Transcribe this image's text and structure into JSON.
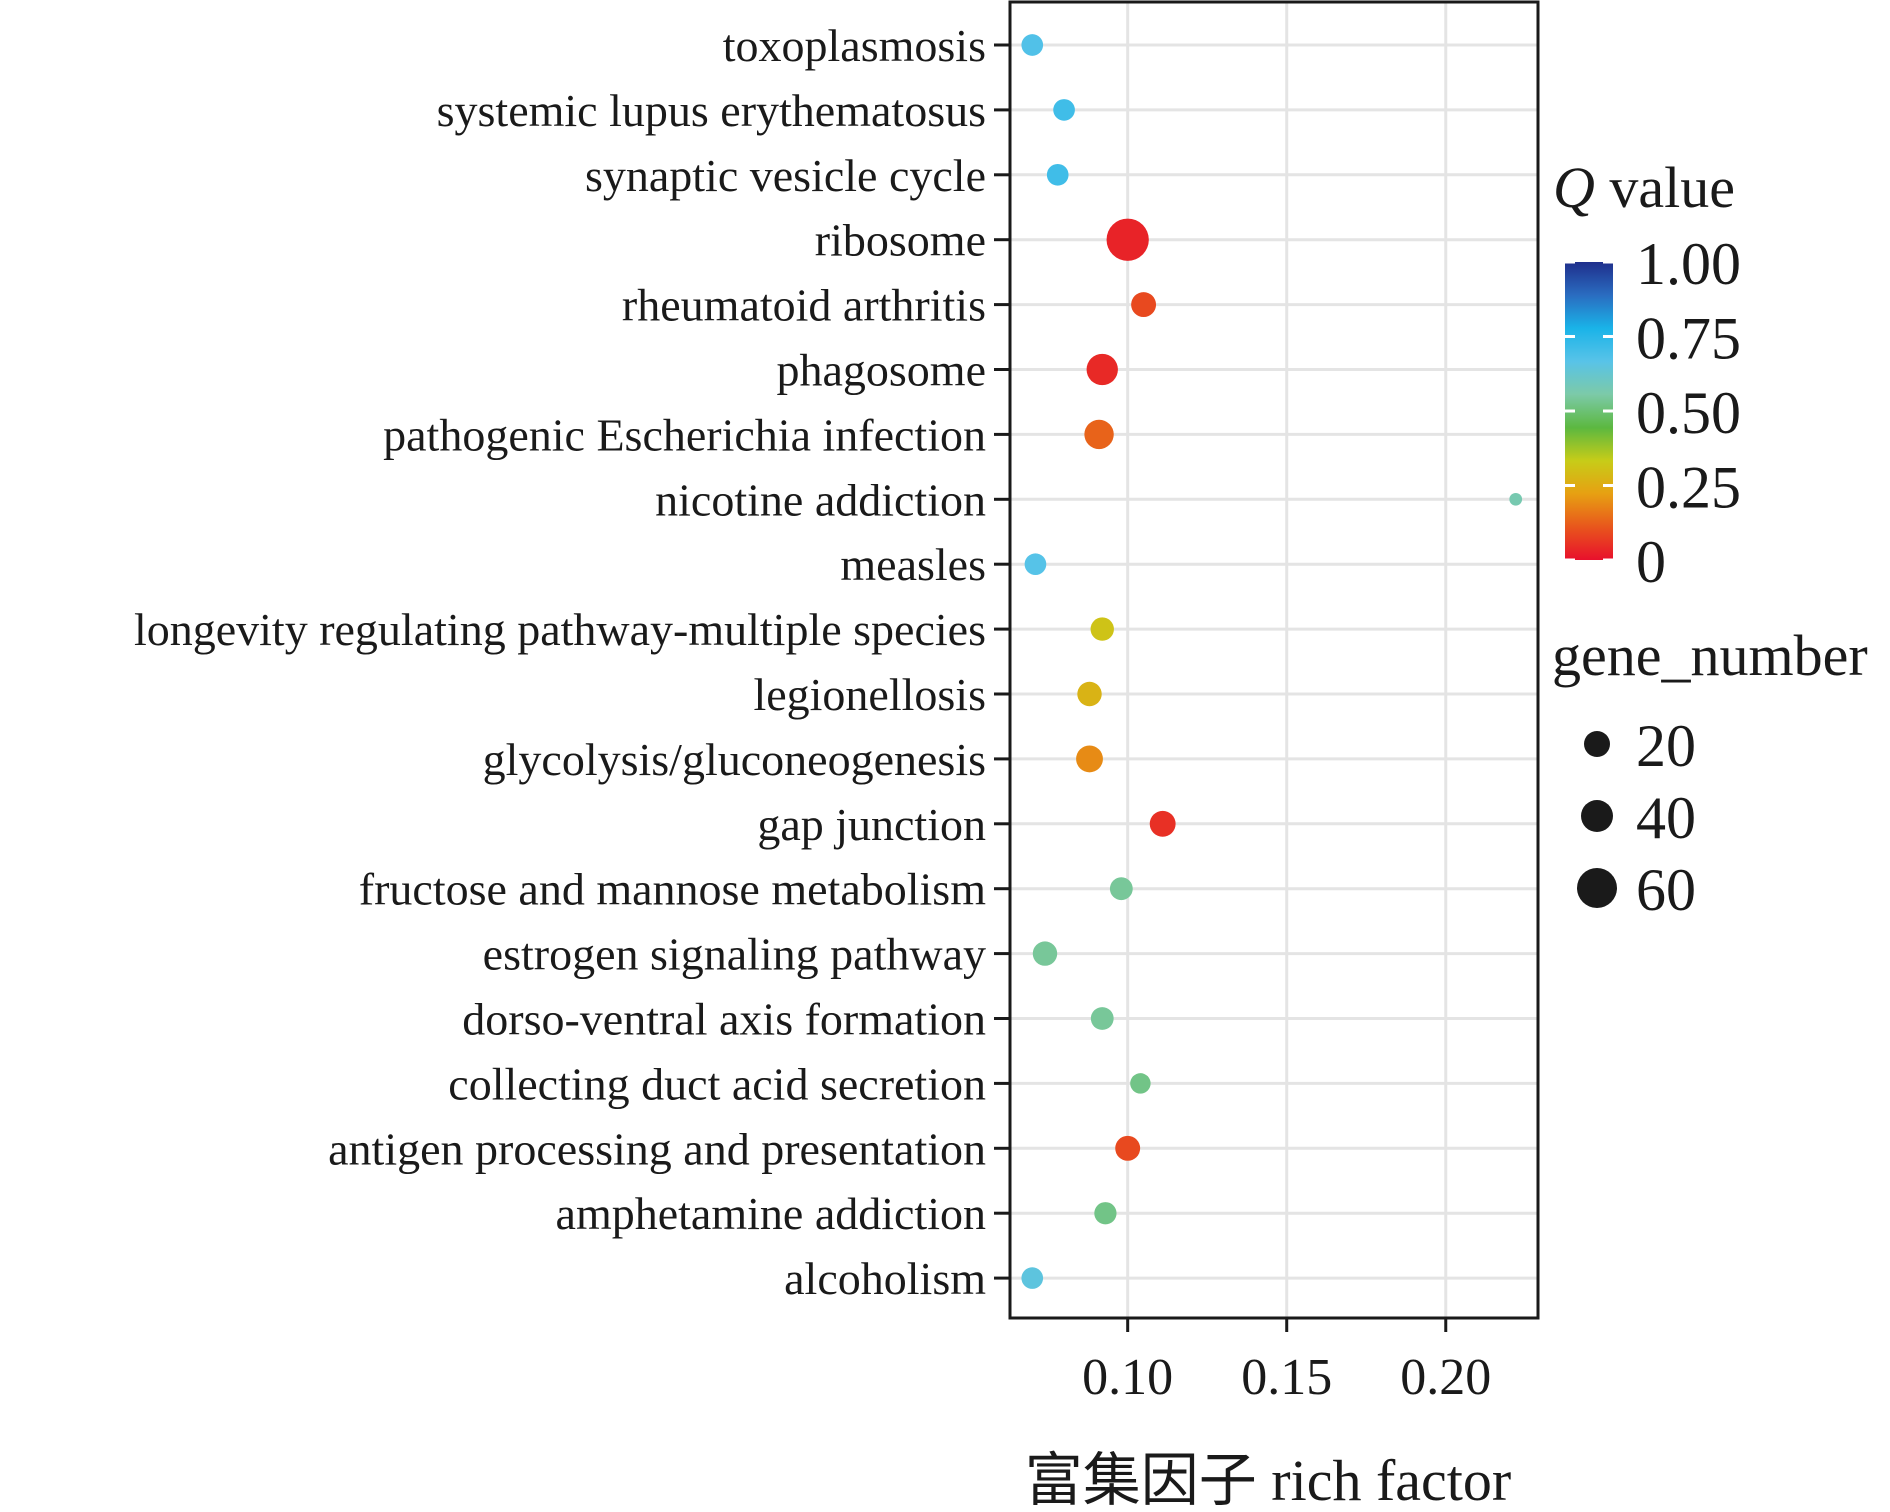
{
  "chart_data": {
    "type": "scatter",
    "title": "",
    "xlabel": "富集因子 rich factor",
    "ylabel": "",
    "xlim": [
      0.063,
      0.229
    ],
    "xticks": [
      0.1,
      0.15,
      0.2
    ],
    "xtick_labels": [
      "0.10",
      "0.15",
      "0.20"
    ],
    "grid": true,
    "categories": [
      "toxoplasmosis",
      "systemic lupus erythematosus",
      "synaptic vesicle cycle",
      "ribosome",
      "rheumatoid arthritis",
      "phagosome",
      "pathogenic Escherichia infection",
      "nicotine addiction",
      "measles",
      "longevity regulating pathway-multiple species",
      "legionellosis",
      "glycolysis/gluconeogenesis",
      "gap junction",
      "fructose and mannose metabolism",
      "estrogen signaling pathway",
      "dorso-ventral axis formation",
      "collecting duct acid secretion",
      "antigen processing and presentation",
      "amphetamine addiction",
      "alcoholism"
    ],
    "points": [
      {
        "category": "toxoplasmosis",
        "x": 0.07,
        "q_value": 0.68,
        "gene_number": 14
      },
      {
        "category": "systemic lupus erythematosus",
        "x": 0.08,
        "q_value": 0.71,
        "gene_number": 14
      },
      {
        "category": "synaptic vesicle cycle",
        "x": 0.078,
        "q_value": 0.71,
        "gene_number": 14
      },
      {
        "category": "ribosome",
        "x": 0.1,
        "q_value": 0.03,
        "gene_number": 70
      },
      {
        "category": "rheumatoid arthritis",
        "x": 0.105,
        "q_value": 0.09,
        "gene_number": 20
      },
      {
        "category": "phagosome",
        "x": 0.092,
        "q_value": 0.04,
        "gene_number": 35
      },
      {
        "category": "pathogenic Escherichia infection",
        "x": 0.091,
        "q_value": 0.13,
        "gene_number": 30
      },
      {
        "category": "nicotine addiction",
        "x": 0.222,
        "q_value": 0.57,
        "gene_number": 3
      },
      {
        "category": "measles",
        "x": 0.071,
        "q_value": 0.67,
        "gene_number": 14
      },
      {
        "category": "longevity regulating pathway-multiple species",
        "x": 0.092,
        "q_value": 0.31,
        "gene_number": 17
      },
      {
        "category": "legionellosis",
        "x": 0.088,
        "q_value": 0.27,
        "gene_number": 19
      },
      {
        "category": "glycolysis/gluconeogenesis",
        "x": 0.088,
        "q_value": 0.19,
        "gene_number": 24
      },
      {
        "category": "gap junction",
        "x": 0.111,
        "q_value": 0.05,
        "gene_number": 22
      },
      {
        "category": "fructose and mannose metabolism",
        "x": 0.098,
        "q_value": 0.54,
        "gene_number": 16
      },
      {
        "category": "estrogen signaling pathway",
        "x": 0.074,
        "q_value": 0.54,
        "gene_number": 19
      },
      {
        "category": "dorso-ventral axis formation",
        "x": 0.092,
        "q_value": 0.54,
        "gene_number": 16
      },
      {
        "category": "collecting duct acid secretion",
        "x": 0.104,
        "q_value": 0.52,
        "gene_number": 12
      },
      {
        "category": "antigen processing and presentation",
        "x": 0.1,
        "q_value": 0.09,
        "gene_number": 20
      },
      {
        "category": "amphetamine addiction",
        "x": 0.093,
        "q_value": 0.52,
        "gene_number": 15
      },
      {
        "category": "alcoholism",
        "x": 0.07,
        "q_value": 0.65,
        "gene_number": 14
      }
    ],
    "color_legend": {
      "title_italic": "Q",
      "title_rest": " value",
      "ticks": [
        1.0,
        0.75,
        0.5,
        0.25,
        0
      ],
      "tick_labels": [
        "1.00",
        "0.75",
        "0.50",
        "0.25",
        "0"
      ],
      "stops": [
        "#e8102c",
        "#e8561c",
        "#e7a012",
        "#c7cc18",
        "#5cb840",
        "#7ccaa8",
        "#58c3e8",
        "#1ab3e8",
        "#2a6cc0",
        "#1f2f8c"
      ]
    },
    "size_legend": {
      "title": "gene_number",
      "values": [
        20,
        40,
        60
      ],
      "labels": [
        "20",
        "40",
        "60"
      ],
      "color": "#1a1a1a"
    },
    "legend_position": "right"
  }
}
